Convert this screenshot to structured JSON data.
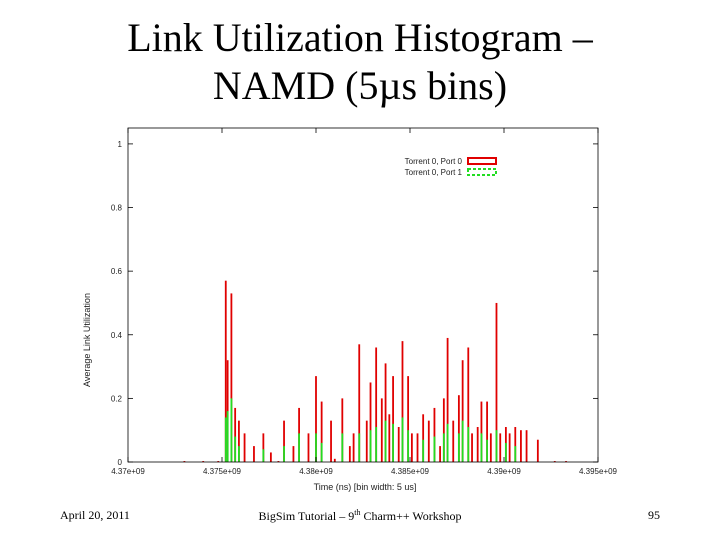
{
  "slide": {
    "title_line1": "Link Utilization Histogram –",
    "title_line2": "NAMD (5µs bins)",
    "footer_date": "April 20, 2011",
    "footer_center_prefix": "BigSim Tutorial – 9",
    "footer_center_sup": "th",
    "footer_center_suffix": " Charm++ Workshop",
    "page_number": "95"
  },
  "chart_data": {
    "type": "bar",
    "title": "",
    "xlabel": "Time (ns) [bin width: 5 us]",
    "ylabel": "Average Link Utilization",
    "xlim": [
      4370000000,
      4395000000
    ],
    "ylim": [
      0,
      1.05
    ],
    "xticks": [
      {
        "value": 4370000000,
        "label": "4.37e+09"
      },
      {
        "value": 4375000000,
        "label": "4.375e+09"
      },
      {
        "value": 4380000000,
        "label": "4.38e+09"
      },
      {
        "value": 4385000000,
        "label": "4.385e+09"
      },
      {
        "value": 4390000000,
        "label": "4.39e+09"
      },
      {
        "value": 4395000000,
        "label": "4.395e+09"
      }
    ],
    "yticks": [
      {
        "value": 0,
        "label": "0"
      },
      {
        "value": 0.2,
        "label": "0.2"
      },
      {
        "value": 0.4,
        "label": "0.4"
      },
      {
        "value": 0.6,
        "label": "0.6"
      },
      {
        "value": 0.8,
        "label": "0.8"
      },
      {
        "value": 1,
        "label": "1"
      }
    ],
    "legend_position": "top-right",
    "colors": {
      "series0": "#e00000",
      "series1": "#22dd22"
    },
    "series": [
      {
        "name": "Torrent 0, Port 0",
        "x": [
          4373000000,
          4374000000,
          4374800000,
          4375200000,
          4375300000,
          4375500000,
          4375700000,
          4375900000,
          4376200000,
          4376700000,
          4377200000,
          4377600000,
          4378000000,
          4378300000,
          4378800000,
          4379100000,
          4379600000,
          4380000000,
          4380300000,
          4380800000,
          4381000000,
          4381400000,
          4381800000,
          4382000000,
          4382300000,
          4382700000,
          4382900000,
          4383200000,
          4383500000,
          4383700000,
          4383900000,
          4384100000,
          4384400000,
          4384600000,
          4384900000,
          4385100000,
          4385400000,
          4385700000,
          4386000000,
          4386300000,
          4386600000,
          4386800000,
          4387000000,
          4387300000,
          4387600000,
          4387800000,
          4388100000,
          4388300000,
          4388600000,
          4388800000,
          4389100000,
          4389300000,
          4389600000,
          4389800000,
          4390100000,
          4390300000,
          4390600000,
          4390900000,
          4391200000,
          4391800000,
          4392700000,
          4393300000
        ],
        "values": [
          0.003,
          0.003,
          0.003,
          0.57,
          0.32,
          0.53,
          0.17,
          0.13,
          0.09,
          0.05,
          0.09,
          0.03,
          0.003,
          0.13,
          0.05,
          0.17,
          0.09,
          0.27,
          0.19,
          0.13,
          0.01,
          0.2,
          0.05,
          0.09,
          0.37,
          0.13,
          0.25,
          0.36,
          0.2,
          0.31,
          0.15,
          0.27,
          0.11,
          0.38,
          0.27,
          0.09,
          0.09,
          0.15,
          0.13,
          0.17,
          0.05,
          0.2,
          0.39,
          0.13,
          0.21,
          0.32,
          0.36,
          0.09,
          0.11,
          0.19,
          0.19,
          0.09,
          0.5,
          0.09,
          0.11,
          0.09,
          0.11,
          0.1,
          0.1,
          0.07,
          0.003,
          0.003
        ]
      },
      {
        "name": "Torrent 0, Port 1",
        "x": [
          4375200000,
          4375300000,
          4375500000,
          4375700000,
          4375900000,
          4377200000,
          4378300000,
          4379100000,
          4380000000,
          4380300000,
          4381400000,
          4382300000,
          4382900000,
          4383200000,
          4383700000,
          4384100000,
          4384600000,
          4384900000,
          4385700000,
          4386300000,
          4386800000,
          4387000000,
          4387600000,
          4387800000,
          4388100000,
          4388800000,
          4389100000,
          4389600000,
          4390100000,
          4390600000
        ],
        "values": [
          0.14,
          0.16,
          0.2,
          0.08,
          0.05,
          0.04,
          0.05,
          0.09,
          0.09,
          0.06,
          0.09,
          0.09,
          0.1,
          0.11,
          0.13,
          0.12,
          0.14,
          0.1,
          0.07,
          0.08,
          0.09,
          0.12,
          0.09,
          0.13,
          0.11,
          0.09,
          0.07,
          0.1,
          0.06,
          0.05
        ]
      }
    ]
  }
}
